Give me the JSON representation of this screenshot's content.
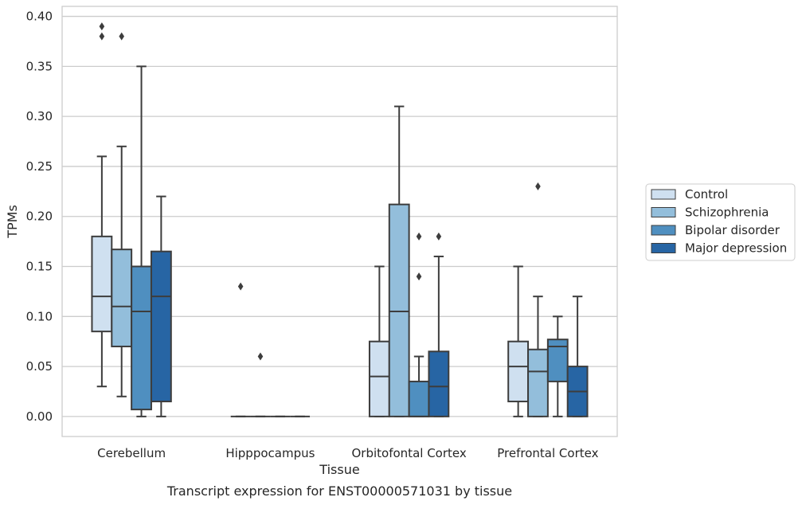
{
  "chart_data": {
    "type": "box",
    "caption": "Transcript expression for ENST00000571031 by tissue",
    "xlabel": "Tissue",
    "ylabel": "TPMs",
    "ylim": [
      -0.02,
      0.41
    ],
    "yticks": [
      0.0,
      0.05,
      0.1,
      0.15,
      0.2,
      0.25,
      0.3,
      0.35,
      0.4
    ],
    "ytick_labels": [
      "0.00",
      "0.05",
      "0.10",
      "0.15",
      "0.20",
      "0.25",
      "0.30",
      "0.35",
      "0.40"
    ],
    "grid": "horizontal",
    "legend_position": "right",
    "categories": [
      "Cerebellum",
      "Hipppocampus",
      "Orbitofontal Cortex",
      "Prefrontal Cortex"
    ],
    "series": [
      {
        "name": "Control",
        "color": "#cfe0f0",
        "boxes": [
          {
            "whislo": 0.03,
            "q1": 0.085,
            "med": 0.12,
            "q3": 0.18,
            "whishi": 0.26,
            "fliers": [
              0.38,
              0.39
            ]
          },
          {
            "whislo": 0.0,
            "q1": 0.0,
            "med": 0.0,
            "q3": 0.0,
            "whishi": 0.0,
            "fliers": [
              0.13
            ]
          },
          {
            "whislo": 0.0,
            "q1": 0.0,
            "med": 0.04,
            "q3": 0.075,
            "whishi": 0.15,
            "fliers": []
          },
          {
            "whislo": 0.0,
            "q1": 0.015,
            "med": 0.05,
            "q3": 0.075,
            "whishi": 0.15,
            "fliers": []
          }
        ]
      },
      {
        "name": "Schizophrenia",
        "color": "#93bedb",
        "boxes": [
          {
            "whislo": 0.02,
            "q1": 0.07,
            "med": 0.11,
            "q3": 0.167,
            "whishi": 0.27,
            "fliers": [
              0.38
            ]
          },
          {
            "whislo": 0.0,
            "q1": 0.0,
            "med": 0.0,
            "q3": 0.0,
            "whishi": 0.0,
            "fliers": [
              0.06
            ]
          },
          {
            "whislo": 0.0,
            "q1": 0.0,
            "med": 0.105,
            "q3": 0.212,
            "whishi": 0.31,
            "fliers": []
          },
          {
            "whislo": 0.0,
            "q1": 0.0,
            "med": 0.045,
            "q3": 0.067,
            "whishi": 0.12,
            "fliers": [
              0.23
            ]
          }
        ]
      },
      {
        "name": "Bipolar disorder",
        "color": "#4f8fc0",
        "boxes": [
          {
            "whislo": 0.0,
            "q1": 0.007,
            "med": 0.105,
            "q3": 0.15,
            "whishi": 0.35,
            "fliers": []
          },
          {
            "whislo": 0.0,
            "q1": 0.0,
            "med": 0.0,
            "q3": 0.0,
            "whishi": 0.0,
            "fliers": []
          },
          {
            "whislo": 0.0,
            "q1": 0.0,
            "med": 0.0,
            "q3": 0.035,
            "whishi": 0.06,
            "fliers": [
              0.14,
              0.18
            ]
          },
          {
            "whislo": 0.0,
            "q1": 0.035,
            "med": 0.07,
            "q3": 0.077,
            "whishi": 0.1,
            "fliers": []
          }
        ]
      },
      {
        "name": "Major depression",
        "color": "#2765a4",
        "boxes": [
          {
            "whislo": 0.0,
            "q1": 0.015,
            "med": 0.12,
            "q3": 0.165,
            "whishi": 0.22,
            "fliers": []
          },
          {
            "whislo": 0.0,
            "q1": 0.0,
            "med": 0.0,
            "q3": 0.0,
            "whishi": 0.0,
            "fliers": []
          },
          {
            "whislo": 0.0,
            "q1": 0.0,
            "med": 0.03,
            "q3": 0.065,
            "whishi": 0.16,
            "fliers": [
              0.18
            ]
          },
          {
            "whislo": 0.0,
            "q1": 0.0,
            "med": 0.025,
            "q3": 0.05,
            "whishi": 0.12,
            "fliers": []
          }
        ]
      }
    ],
    "colors": {
      "axes_edge": "#cccccc",
      "grid": "#cccccc",
      "box_edge": "#3d3d3d",
      "text": "#262626"
    }
  }
}
